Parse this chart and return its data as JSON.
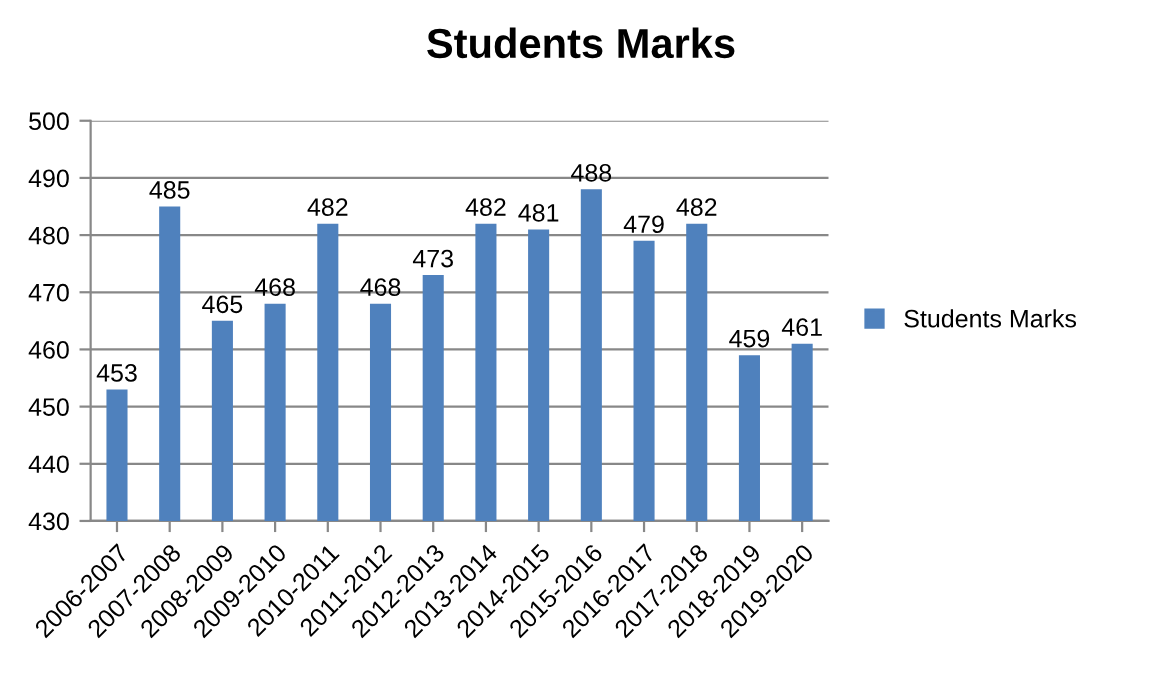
{
  "chart_data": {
    "type": "bar",
    "title": "Students Marks",
    "categories": [
      "2006-2007",
      "2007-2008",
      "2008-2009",
      "2009-2010",
      "2010-2011",
      "2011-2012",
      "2012-2013",
      "2013-2014",
      "2014-2015",
      "2015-2016",
      "2016-2017",
      "2017-2018",
      "2018-2019",
      "2019-2020"
    ],
    "series": [
      {
        "name": "Students Marks",
        "color": "#4f81bd",
        "values": [
          453,
          485,
          465,
          468,
          482,
          468,
          473,
          482,
          481,
          488,
          479,
          482,
          459,
          461
        ]
      }
    ],
    "ylim": [
      430,
      500
    ],
    "yticks": [
      430,
      440,
      450,
      460,
      470,
      480,
      490,
      500
    ],
    "grid": "y",
    "legend": "right",
    "data_labels": true
  }
}
